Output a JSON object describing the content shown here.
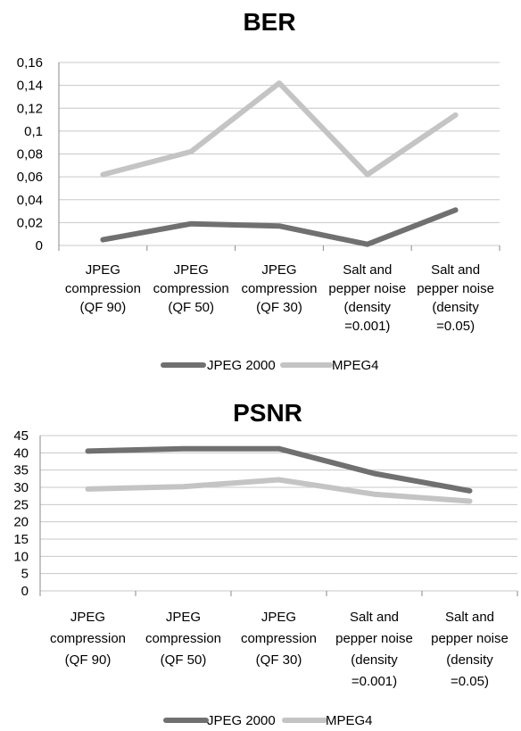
{
  "chart_data": [
    {
      "type": "line",
      "title": "BER",
      "categories": [
        [
          "JPEG",
          "compression",
          "(QF 90)"
        ],
        [
          "JPEG",
          "compression",
          "(QF 50)"
        ],
        [
          "JPEG",
          "compression",
          "(QF 30)"
        ],
        [
          "Salt and",
          "pepper noise",
          "(density",
          "=0.001)"
        ],
        [
          "Salt and",
          "pepper noise",
          "(density",
          "=0.05)"
        ]
      ],
      "yticks": [
        "0",
        "0,02",
        "0,04",
        "0,06",
        "0,08",
        "0,1",
        "0,12",
        "0,14",
        "0,16"
      ],
      "ylim": [
        0,
        0.16
      ],
      "grid": true,
      "legend_position": "bottom",
      "series": [
        {
          "name": "JPEG 2000",
          "values": [
            0.005,
            0.019,
            0.017,
            0.001,
            0.031
          ],
          "color": "#707070"
        },
        {
          "name": "MPEG4",
          "values": [
            0.062,
            0.082,
            0.142,
            0.062,
            0.114
          ],
          "color": "#c4c4c4"
        }
      ]
    },
    {
      "type": "line",
      "title": "PSNR",
      "categories": [
        [
          "JPEG",
          "compression",
          "(QF 90)"
        ],
        [
          "JPEG",
          "compression",
          "(QF 50)"
        ],
        [
          "JPEG",
          "compression",
          "(QF 30)"
        ],
        [
          "Salt and",
          "pepper noise",
          "(density",
          "=0.001)"
        ],
        [
          "Salt and",
          "pepper noise",
          "(density",
          "=0.05)"
        ]
      ],
      "yticks": [
        "0",
        "5",
        "10",
        "15",
        "20",
        "25",
        "30",
        "35",
        "40",
        "45"
      ],
      "ylim": [
        0,
        45
      ],
      "grid": true,
      "legend_position": "bottom",
      "series": [
        {
          "name": "JPEG 2000",
          "values": [
            40.5,
            41.2,
            41.2,
            34,
            29
          ],
          "color": "#707070"
        },
        {
          "name": "MPEG4",
          "values": [
            29.5,
            30.2,
            32.2,
            28,
            26
          ],
          "color": "#c4c4c4"
        }
      ]
    }
  ]
}
